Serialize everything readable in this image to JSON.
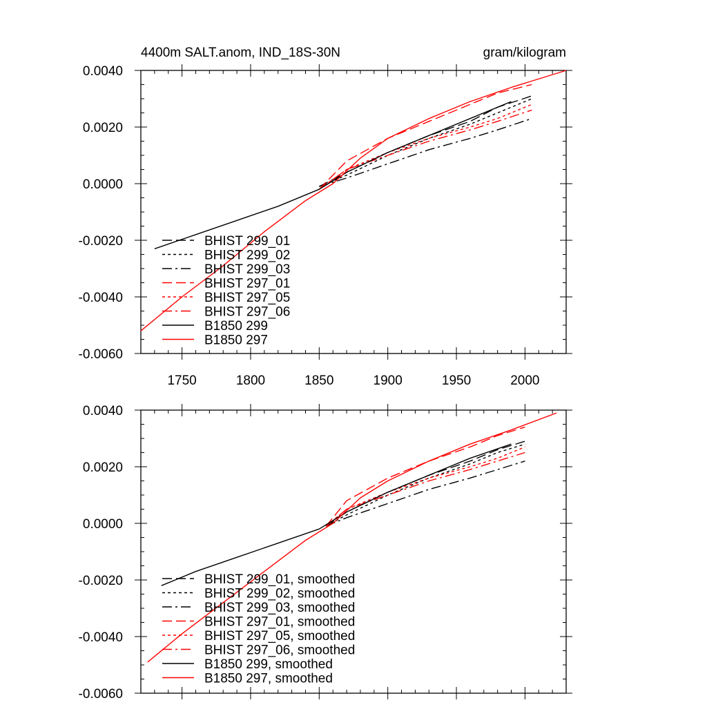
{
  "header": {
    "title": "4400m SALT.anom, IND_18S-30N",
    "units": "gram/kilogram"
  },
  "chart_data": [
    {
      "type": "line",
      "title": "4400m SALT.anom, IND_18S-30N",
      "units": "gram/kilogram",
      "xlim": [
        1720,
        2030
      ],
      "ylim": [
        -0.006,
        0.004
      ],
      "yticks": [
        "0.0040",
        "0.0020",
        "0.0000",
        "-0.0020",
        "-0.0040",
        "-0.0060"
      ],
      "xticks": [
        "1750",
        "1800",
        "1850",
        "1900",
        "1950",
        "2000"
      ],
      "legend_position": "lower-left",
      "series": [
        {
          "name": "BHIST 299_01",
          "color": "#000000",
          "dash": "dashed",
          "x": [
            1850,
            1870,
            1900,
            1930,
            1960,
            1980,
            2005
          ],
          "y": [
            -0.0001,
            0.0004,
            0.0011,
            0.0017,
            0.0022,
            0.0027,
            0.0031
          ]
        },
        {
          "name": "BHIST 299_02",
          "color": "#000000",
          "dash": "dotted",
          "x": [
            1850,
            1870,
            1900,
            1930,
            1960,
            1980,
            2005
          ],
          "y": [
            -0.0001,
            0.0003,
            0.001,
            0.0016,
            0.0021,
            0.0025,
            0.003
          ]
        },
        {
          "name": "BHIST 299_03",
          "color": "#000000",
          "dash": "dashdot",
          "x": [
            1850,
            1870,
            1900,
            1930,
            1960,
            1980,
            2005
          ],
          "y": [
            -0.0001,
            0.0002,
            0.0007,
            0.0012,
            0.0016,
            0.0019,
            0.0023
          ]
        },
        {
          "name": "BHIST 297_01",
          "color": "#ff0000",
          "dash": "dashed",
          "x": [
            1850,
            1870,
            1900,
            1930,
            1960,
            1980,
            2005
          ],
          "y": [
            -0.0002,
            0.0008,
            0.0016,
            0.0022,
            0.0028,
            0.0032,
            0.0035
          ]
        },
        {
          "name": "BHIST 297_05",
          "color": "#ff0000",
          "dash": "dotted",
          "x": [
            1850,
            1870,
            1900,
            1930,
            1960,
            1980,
            2005
          ],
          "y": [
            -0.0002,
            0.0005,
            0.0011,
            0.0016,
            0.002,
            0.0023,
            0.0028
          ]
        },
        {
          "name": "BHIST 297_06",
          "color": "#ff0000",
          "dash": "dashdot",
          "x": [
            1850,
            1870,
            1900,
            1930,
            1960,
            1980,
            2005
          ],
          "y": [
            -0.0002,
            0.0005,
            0.001,
            0.0015,
            0.0019,
            0.0022,
            0.0026
          ]
        },
        {
          "name": "B1850 299",
          "color": "#000000",
          "dash": "solid",
          "x": [
            1730,
            1760,
            1790,
            1820,
            1850,
            1870,
            1900,
            1930,
            1960,
            1990
          ],
          "y": [
            -0.0023,
            -0.0018,
            -0.0013,
            -0.0008,
            -0.0002,
            0.0004,
            0.0011,
            0.0017,
            0.0023,
            0.0029
          ]
        },
        {
          "name": "B1850 297",
          "color": "#ff0000",
          "dash": "solid",
          "x": [
            1720,
            1750,
            1780,
            1810,
            1840,
            1860,
            1880,
            1900,
            1930,
            1960,
            1990,
            2030
          ],
          "y": [
            -0.0052,
            -0.004,
            -0.0029,
            -0.0017,
            -0.0006,
            0.0,
            0.0009,
            0.0016,
            0.0023,
            0.0029,
            0.0034,
            0.004
          ]
        }
      ]
    },
    {
      "type": "line",
      "xlim": [
        1720,
        2030
      ],
      "ylim": [
        -0.006,
        0.004
      ],
      "yticks": [
        "0.0040",
        "0.0020",
        "0.0000",
        "-0.0020",
        "-0.0040",
        "-0.0060"
      ],
      "legend_position": "lower-left",
      "series": [
        {
          "name": "BHIST 299_01, smoothed",
          "color": "#000000",
          "dash": "dashed",
          "x": [
            1855,
            1870,
            1900,
            1930,
            1960,
            1980,
            2000
          ],
          "y": [
            -0.0001,
            0.0004,
            0.0011,
            0.0017,
            0.0022,
            0.0026,
            0.0029
          ]
        },
        {
          "name": "BHIST 299_02, smoothed",
          "color": "#000000",
          "dash": "dotted",
          "x": [
            1855,
            1870,
            1900,
            1930,
            1960,
            1980,
            2000
          ],
          "y": [
            -0.0001,
            0.0003,
            0.001,
            0.0016,
            0.0021,
            0.0025,
            0.0028
          ]
        },
        {
          "name": "BHIST 299_03, smoothed",
          "color": "#000000",
          "dash": "dashdot",
          "x": [
            1855,
            1870,
            1900,
            1930,
            1960,
            1980,
            2000
          ],
          "y": [
            -0.0001,
            0.0002,
            0.0007,
            0.0012,
            0.0016,
            0.0019,
            0.0022
          ]
        },
        {
          "name": "BHIST 297_01, smoothed",
          "color": "#ff0000",
          "dash": "dashed",
          "x": [
            1855,
            1870,
            1900,
            1930,
            1960,
            1980,
            2000
          ],
          "y": [
            -0.0001,
            0.0008,
            0.0016,
            0.0022,
            0.0027,
            0.0031,
            0.0034
          ]
        },
        {
          "name": "BHIST 297_05, smoothed",
          "color": "#ff0000",
          "dash": "dotted",
          "x": [
            1855,
            1870,
            1900,
            1930,
            1960,
            1980,
            2000
          ],
          "y": [
            -0.0001,
            0.0005,
            0.0011,
            0.0016,
            0.002,
            0.0023,
            0.0027
          ]
        },
        {
          "name": "BHIST 297_06, smoothed",
          "color": "#ff0000",
          "dash": "dashdot",
          "x": [
            1855,
            1870,
            1900,
            1930,
            1960,
            1980,
            2000
          ],
          "y": [
            -0.0001,
            0.0005,
            0.001,
            0.0015,
            0.0019,
            0.0022,
            0.0025
          ]
        },
        {
          "name": "B1850 299, smoothed",
          "color": "#000000",
          "dash": "solid",
          "x": [
            1735,
            1760,
            1790,
            1820,
            1850,
            1870,
            1900,
            1930,
            1960,
            1990
          ],
          "y": [
            -0.0022,
            -0.0017,
            -0.0012,
            -0.0007,
            -0.0002,
            0.0004,
            0.0011,
            0.0017,
            0.0023,
            0.0028
          ]
        },
        {
          "name": "B1850 297, smoothed",
          "color": "#ff0000",
          "dash": "solid",
          "x": [
            1725,
            1750,
            1780,
            1810,
            1840,
            1860,
            1880,
            1900,
            1930,
            1960,
            1990,
            2023
          ],
          "y": [
            -0.0049,
            -0.0039,
            -0.0028,
            -0.0017,
            -0.0006,
            0.0,
            0.0009,
            0.0015,
            0.0022,
            0.0028,
            0.0033,
            0.0039
          ]
        }
      ]
    }
  ]
}
